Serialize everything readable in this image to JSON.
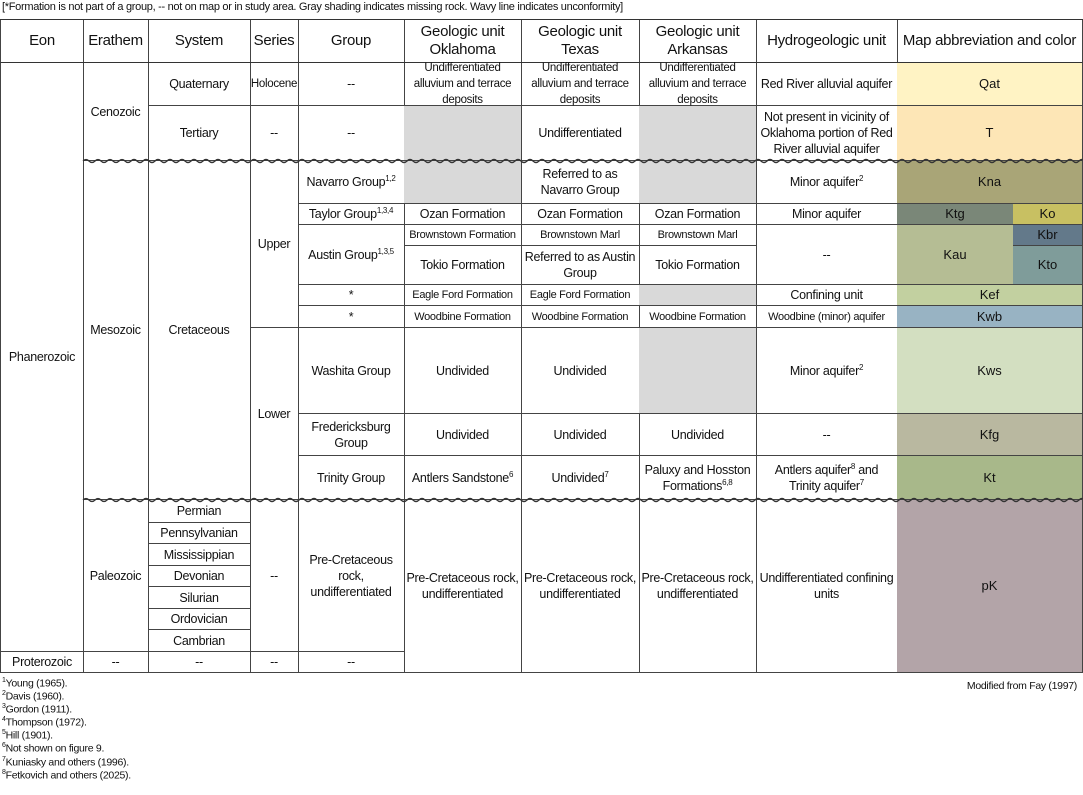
{
  "note": "[*Formation is not part of a group, -- not on map or in study area. Gray shading indicates missing rock. Wavy line indicates unconformity]",
  "headers": {
    "eon": "Eon",
    "erathem": "Erathem",
    "system": "System",
    "series": "Series",
    "group": "Group",
    "ok": "Geologic unit Oklahoma",
    "tx": "Geologic unit Texas",
    "ar": "Geologic unit Arkansas",
    "hydro": "Hydrogeologic unit",
    "map": "Map abbreviation and color"
  },
  "eon": {
    "phanerozoic": "Phanerozoic",
    "proterozoic": "Proterozoic"
  },
  "erathem": {
    "cenozoic": "Cenozoic",
    "mesozoic": "Mesozoic",
    "paleozoic": "Paleozoic",
    "proterozoic": "--"
  },
  "system": {
    "quaternary": "Quaternary",
    "tertiary": "Tertiary",
    "cretaceous": "Cretaceous",
    "paleozoic": [
      "Permian",
      "Pennsylvanian",
      "Mississippian",
      "Devonian",
      "Silurian",
      "Ordovician",
      "Cambrian"
    ],
    "proterozoic": "--"
  },
  "series": {
    "holocene": "Holocene",
    "tertiary": "--",
    "upper": "Upper",
    "lower": "Lower",
    "paleozoic": "--",
    "proterozoic": "--"
  },
  "group": {
    "quaternary": "--",
    "tertiary": "--",
    "navarro": "Navarro Group",
    "navarro_sup": "1,2",
    "taylor": "Taylor Group",
    "taylor_sup": "1,3,4",
    "austin": "Austin Group",
    "austin_sup": "1,3,5",
    "eagle": "*",
    "woodbine": "*",
    "washita": "Washita Group",
    "fredericksburg": "Fredericksburg Group",
    "trinity": "Trinity Group",
    "precret": "Pre-Cretaceous rock, undifferentiated",
    "proterozoic": "--"
  },
  "ok": {
    "quaternary": "Undifferentiated alluvium and terrace deposits",
    "taylor": "Ozan Formation",
    "brownstown": "Brownstown Formation",
    "tokio": "Tokio Formation",
    "eagle": "Eagle Ford Formation",
    "woodbine": "Woodbine Formation",
    "washita": "Undivided",
    "fredericksburg": "Undivided",
    "trinity": "Antlers Sandstone",
    "trinity_sup": "6",
    "precret": "Pre-Cretaceous rock, undifferentiated"
  },
  "tx": {
    "quaternary": "Undifferentiated alluvium and terrace deposits",
    "tertiary": "Undifferentiated",
    "navarro": "Referred to as Navarro Group",
    "taylor": "Ozan Formation",
    "brownstown": "Brownstown Marl",
    "tokio": "Referred to as Austin Group",
    "eagle": "Eagle Ford Formation",
    "woodbine": "Woodbine Formation",
    "washita": "Undivided",
    "fredericksburg": "Undivided",
    "trinity": "Undivided",
    "trinity_sup": "7",
    "precret": "Pre-Cretaceous rock, undifferentiated"
  },
  "ar": {
    "quaternary": "Undifferentiated alluvium and terrace deposits",
    "taylor": "Ozan Formation",
    "brownstown": "Brownstown Marl",
    "tokio": "Tokio Formation",
    "woodbine": "Woodbine Formation",
    "fredericksburg": "Undivided",
    "trinity": "Paluxy and Hosston Formations",
    "trinity_sup": "6,8",
    "precret": "Pre-Cretaceous rock, undifferentiated"
  },
  "hydro": {
    "quaternary": "Red River alluvial aquifer",
    "tertiary": "Not present in vicinity of Oklahoma portion of Red River alluvial aquifer",
    "navarro": "Minor aquifer",
    "navarro_sup": "2",
    "taylor": "Minor aquifer",
    "austin": "--",
    "eagle": "Confining unit",
    "woodbine": "Woodbine (minor) aquifer",
    "washita": "Minor aquifer",
    "washita_sup": "2",
    "fredericksburg": "--",
    "trinity_a": "Antlers aquifer",
    "trinity_a_sup": "8",
    "trinity_b": " and Trinity aquifer",
    "trinity_b_sup": "7",
    "precret": "Undifferentiated confining units"
  },
  "map": {
    "Qat": {
      "label": "Qat",
      "color": "#fff3c4"
    },
    "T": {
      "label": "T",
      "color": "#fde6b6"
    },
    "Kna": {
      "label": "Kna",
      "color": "#a9a577"
    },
    "Ktg": {
      "label": "Ktg",
      "color": "#7a8778"
    },
    "Ko": {
      "label": "Ko",
      "color": "#c8c062"
    },
    "Kau": {
      "label": "Kau",
      "color": "#b5bd94"
    },
    "Kbr": {
      "label": "Kbr",
      "color": "#63798a"
    },
    "Kto": {
      "label": "Kto",
      "color": "#7f9c9a"
    },
    "Kef": {
      "label": "Kef",
      "color": "#c2d0a0"
    },
    "Kwb": {
      "label": "Kwb",
      "color": "#98b3c3"
    },
    "Kws": {
      "label": "Kws",
      "color": "#d3dfc1"
    },
    "Kfg": {
      "label": "Kfg",
      "color": "#b9b8a0"
    },
    "Kt": {
      "label": "Kt",
      "color": "#a8b88a"
    },
    "pK": {
      "label": "pK",
      "color": "#b3a4a8"
    }
  },
  "missing_rock_color": "#d9d9d9",
  "footnotes": [
    {
      "sup": "1",
      "text": "Young (1965)."
    },
    {
      "sup": "2",
      "text": "Davis (1960)."
    },
    {
      "sup": "3",
      "text": "Gordon (1911)."
    },
    {
      "sup": "4",
      "text": "Thompson (1972)."
    },
    {
      "sup": "5",
      "text": "Hill (1901)."
    },
    {
      "sup": "6",
      "text": "Not shown on figure 9."
    },
    {
      "sup": "7",
      "text": "Kuniasky and others (1996)."
    },
    {
      "sup": "8",
      "text": "Fetkovich and others (2025)."
    }
  ],
  "credit": "Modified from Fay (1997)"
}
